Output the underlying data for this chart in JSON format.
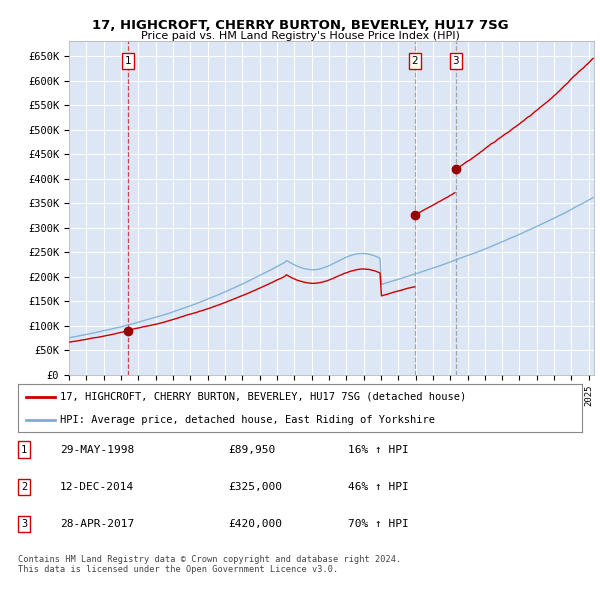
{
  "title_line1": "17, HIGHCROFT, CHERRY BURTON, BEVERLEY, HU17 7SG",
  "title_line2": "Price paid vs. HM Land Registry's House Price Index (HPI)",
  "hpi_color": "#7bafd4",
  "price_color": "#cc0000",
  "background_color": "#dce6f5",
  "grid_color": "#ffffff",
  "sale_points": [
    {
      "year": 1998.4,
      "price": 89950,
      "label": "1",
      "vline_color": "#cc0000",
      "vline_style": "--"
    },
    {
      "year": 2014.95,
      "price": 325000,
      "label": "2",
      "vline_color": "#888888",
      "vline_style": "--"
    },
    {
      "year": 2017.33,
      "price": 420000,
      "label": "3",
      "vline_color": "#888888",
      "vline_style": "--"
    }
  ],
  "legend_entries": [
    "17, HIGHCROFT, CHERRY BURTON, BEVERLEY, HU17 7SG (detached house)",
    "HPI: Average price, detached house, East Riding of Yorkshire"
  ],
  "table_rows": [
    {
      "num": "1",
      "date": "29-MAY-1998",
      "price": "£89,950",
      "hpi": "16% ↑ HPI"
    },
    {
      "num": "2",
      "date": "12-DEC-2014",
      "price": "£325,000",
      "hpi": "46% ↑ HPI"
    },
    {
      "num": "3",
      "date": "28-APR-2017",
      "price": "£420,000",
      "hpi": "70% ↑ HPI"
    }
  ],
  "footer": "Contains HM Land Registry data © Crown copyright and database right 2024.\nThis data is licensed under the Open Government Licence v3.0.",
  "ylabel_ticks": [
    "£0",
    "£50K",
    "£100K",
    "£150K",
    "£200K",
    "£250K",
    "£300K",
    "£350K",
    "£400K",
    "£450K",
    "£500K",
    "£550K",
    "£600K",
    "£650K"
  ],
  "ytick_vals": [
    0,
    50000,
    100000,
    150000,
    200000,
    250000,
    300000,
    350000,
    400000,
    450000,
    500000,
    550000,
    600000,
    650000
  ],
  "ylim_top": 680000,
  "xlim_start": 1995,
  "xlim_end": 2025.3
}
